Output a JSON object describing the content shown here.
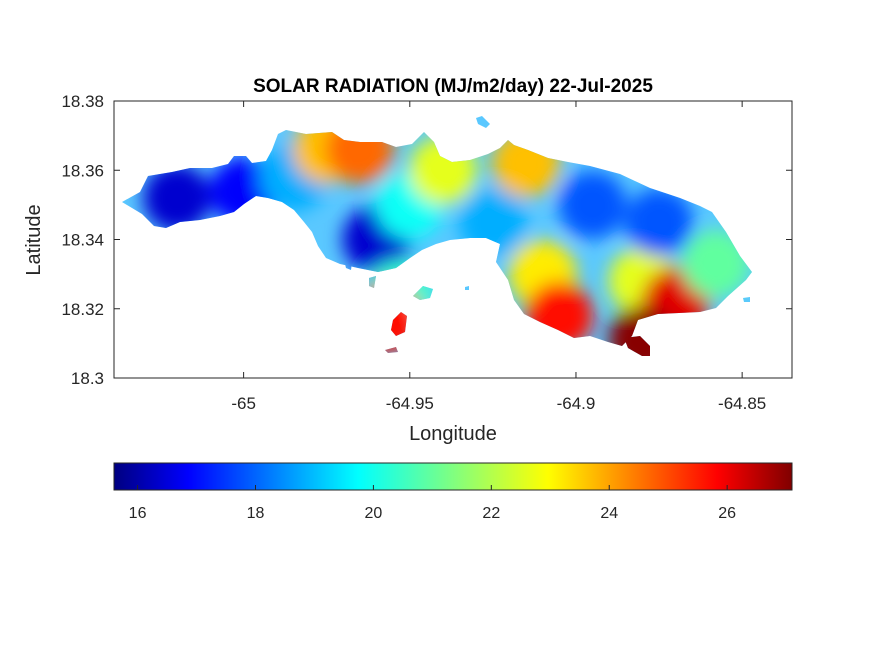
{
  "chart_data": {
    "type": "heatmap",
    "title": "SOLAR RADIATION (MJ/m2/day) 22-Jul-2025",
    "xlabel": "Longitude",
    "ylabel": "Latitude",
    "xlim": [
      -65.039,
      -64.835
    ],
    "ylim": [
      18.3,
      18.38
    ],
    "xticks": [
      -65.0,
      -64.95,
      -64.9,
      -64.85
    ],
    "xtick_labels": [
      "-65",
      "-64.95",
      "-64.9",
      "-64.85"
    ],
    "yticks": [
      18.3,
      18.32,
      18.34,
      18.36,
      18.38
    ],
    "ytick_labels": [
      "18.3",
      "18.32",
      "18.34",
      "18.36",
      "18.38"
    ],
    "colorbar": {
      "colormap": "jet",
      "range": [
        15.6,
        27.1
      ],
      "ticks": [
        16,
        18,
        20,
        22,
        24,
        26
      ],
      "tick_labels": [
        "16",
        "18",
        "20",
        "22",
        "24",
        "26"
      ],
      "placement": "bottom"
    },
    "grid": false,
    "region_values": [
      {
        "lon": -65.02,
        "lat": 18.352,
        "value": 16.5
      },
      {
        "lon": -65.0,
        "lat": 18.354,
        "value": 17.0
      },
      {
        "lon": -64.985,
        "lat": 18.358,
        "value": 19.0
      },
      {
        "lon": -64.975,
        "lat": 18.366,
        "value": 23.5
      },
      {
        "lon": -64.965,
        "lat": 18.366,
        "value": 24.5
      },
      {
        "lon": -64.96,
        "lat": 18.34,
        "value": 16.5
      },
      {
        "lon": -64.95,
        "lat": 18.35,
        "value": 20.0
      },
      {
        "lon": -64.94,
        "lat": 18.36,
        "value": 22.5
      },
      {
        "lon": -64.925,
        "lat": 18.345,
        "value": 19.0
      },
      {
        "lon": -64.915,
        "lat": 18.362,
        "value": 23.5
      },
      {
        "lon": -64.91,
        "lat": 18.33,
        "value": 23.0
      },
      {
        "lon": -64.905,
        "lat": 18.318,
        "value": 25.5
      },
      {
        "lon": -64.895,
        "lat": 18.35,
        "value": 18.0
      },
      {
        "lon": -64.88,
        "lat": 18.328,
        "value": 22.5
      },
      {
        "lon": -64.875,
        "lat": 18.345,
        "value": 18.0
      },
      {
        "lon": -64.87,
        "lat": 18.322,
        "value": 26.0
      },
      {
        "lon": -64.88,
        "lat": 18.311,
        "value": 27.0
      },
      {
        "lon": -64.858,
        "lat": 18.333,
        "value": 21.0
      },
      {
        "lon": -64.953,
        "lat": 18.324,
        "value": 20.5
      },
      {
        "lon": -64.957,
        "lat": 18.317,
        "value": 25.5
      }
    ]
  }
}
